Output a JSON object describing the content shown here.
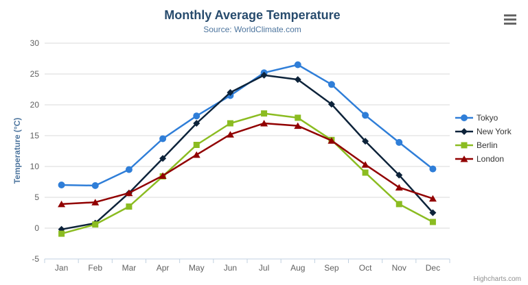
{
  "chart": {
    "title": "Monthly Average Temperature",
    "subtitle": "Source: WorldClimate.com",
    "credits": "Highcharts.com",
    "menu_icon": "hamburger-menu-icon",
    "background_color": "#ffffff",
    "grid_color": "#d8d8d8",
    "axis_line_color": "#c0d0e0",
    "axis_label_color": "#606060",
    "title_color": "#274b6d",
    "subtitle_color": "#4d759e"
  },
  "chart_data": {
    "type": "line",
    "title": "Monthly Average Temperature",
    "subtitle": "Source: WorldClimate.com",
    "xlabel": "",
    "ylabel": "Temperature (°C)",
    "categories": [
      "Jan",
      "Feb",
      "Mar",
      "Apr",
      "May",
      "Jun",
      "Jul",
      "Aug",
      "Sep",
      "Oct",
      "Nov",
      "Dec"
    ],
    "ylim": [
      -5,
      30
    ],
    "ytick_step": 5,
    "grid": true,
    "legend_position": "right-middle",
    "series": [
      {
        "name": "Tokyo",
        "color": "#2f7ed8",
        "marker": "circle",
        "values": [
          7.0,
          6.9,
          9.5,
          14.5,
          18.2,
          21.5,
          25.2,
          26.5,
          23.3,
          18.3,
          13.9,
          9.6
        ]
      },
      {
        "name": "New York",
        "color": "#0d233a",
        "marker": "diamond",
        "values": [
          -0.2,
          0.8,
          5.7,
          11.3,
          17.0,
          22.0,
          24.8,
          24.1,
          20.1,
          14.1,
          8.6,
          2.5
        ]
      },
      {
        "name": "Berlin",
        "color": "#8bbc21",
        "marker": "square",
        "values": [
          -0.9,
          0.6,
          3.5,
          8.4,
          13.5,
          17.0,
          18.6,
          17.9,
          14.3,
          9.0,
          3.9,
          1.0
        ]
      },
      {
        "name": "London",
        "color": "#910000",
        "marker": "triangle",
        "values": [
          3.9,
          4.2,
          5.7,
          8.5,
          11.9,
          15.2,
          17.0,
          16.6,
          14.2,
          10.3,
          6.6,
          4.8
        ]
      }
    ]
  }
}
